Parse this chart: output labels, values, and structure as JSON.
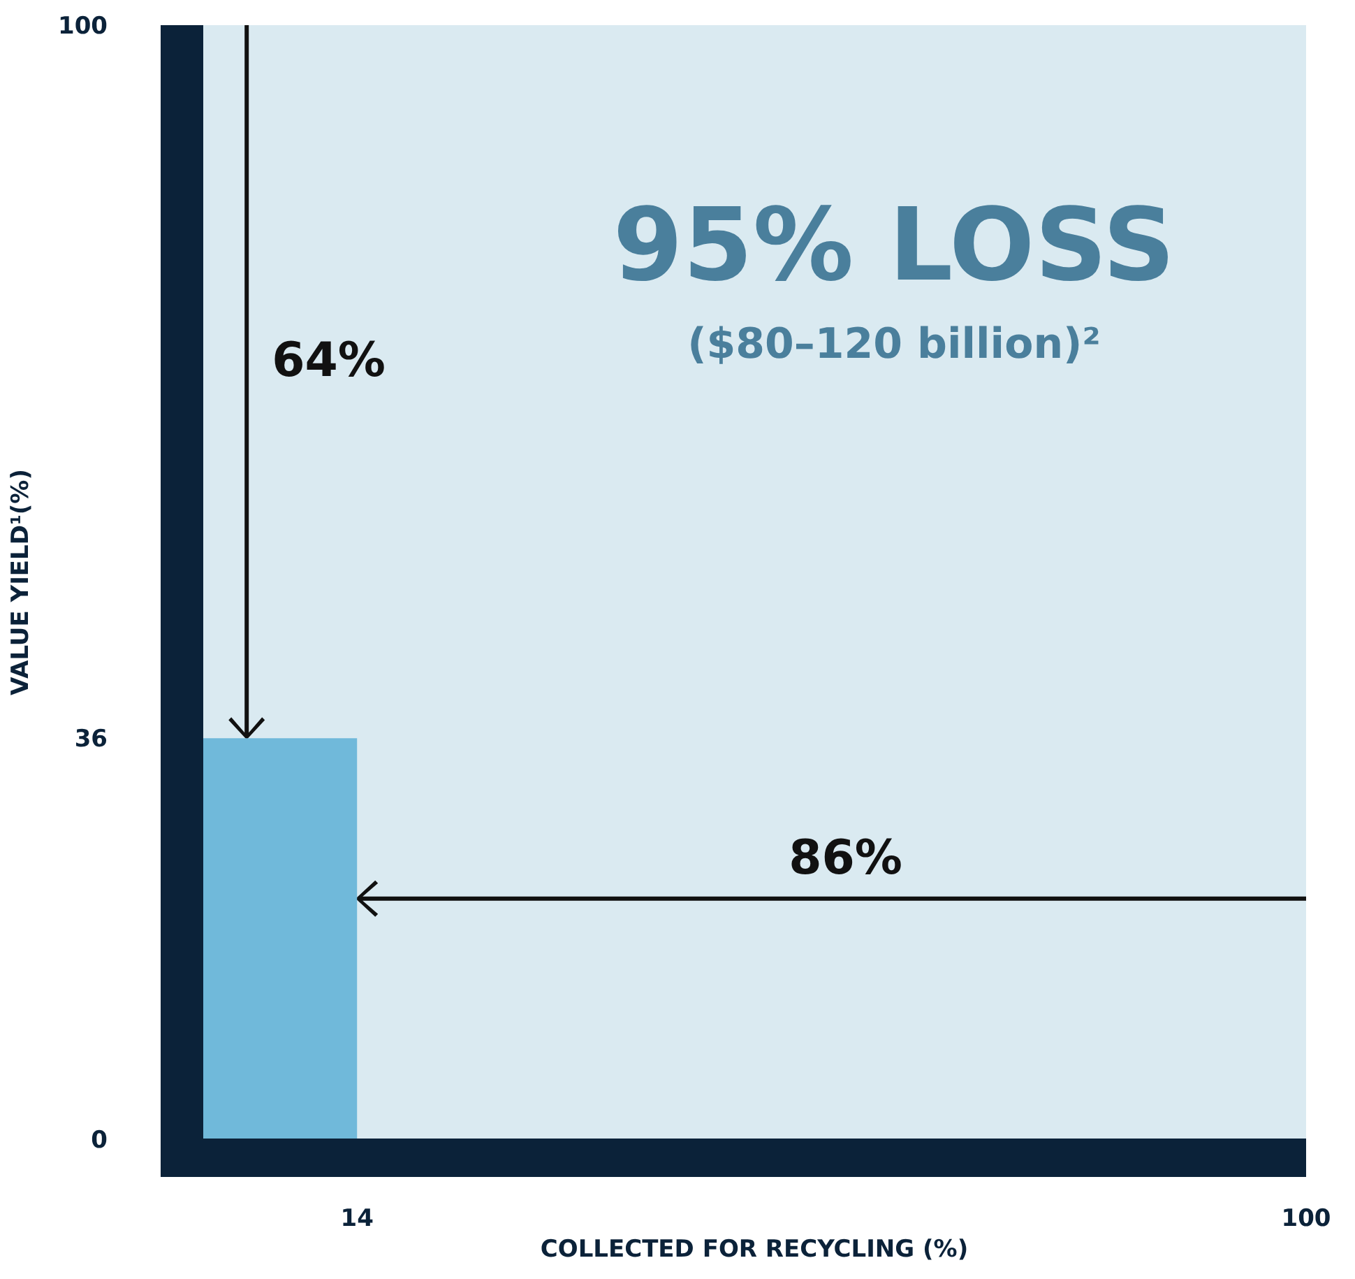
{
  "chart_data": {
    "type": "area",
    "xlabel": "COLLECTED FOR RECYCLING (%)",
    "ylabel": "VALUE YIELD¹(%)",
    "x": [
      0,
      14
    ],
    "series": [
      {
        "color": "#70b9da",
        "values": [
          36,
          36
        ]
      }
    ],
    "xlim": [
      0,
      100
    ],
    "ylim": [
      0,
      100
    ],
    "xticks": [
      14,
      100
    ],
    "yticks": [
      0,
      36,
      100
    ],
    "annotations": [
      "64%",
      "86%",
      "95% LOSS",
      "($80–120 billion)²"
    ]
  }
}
